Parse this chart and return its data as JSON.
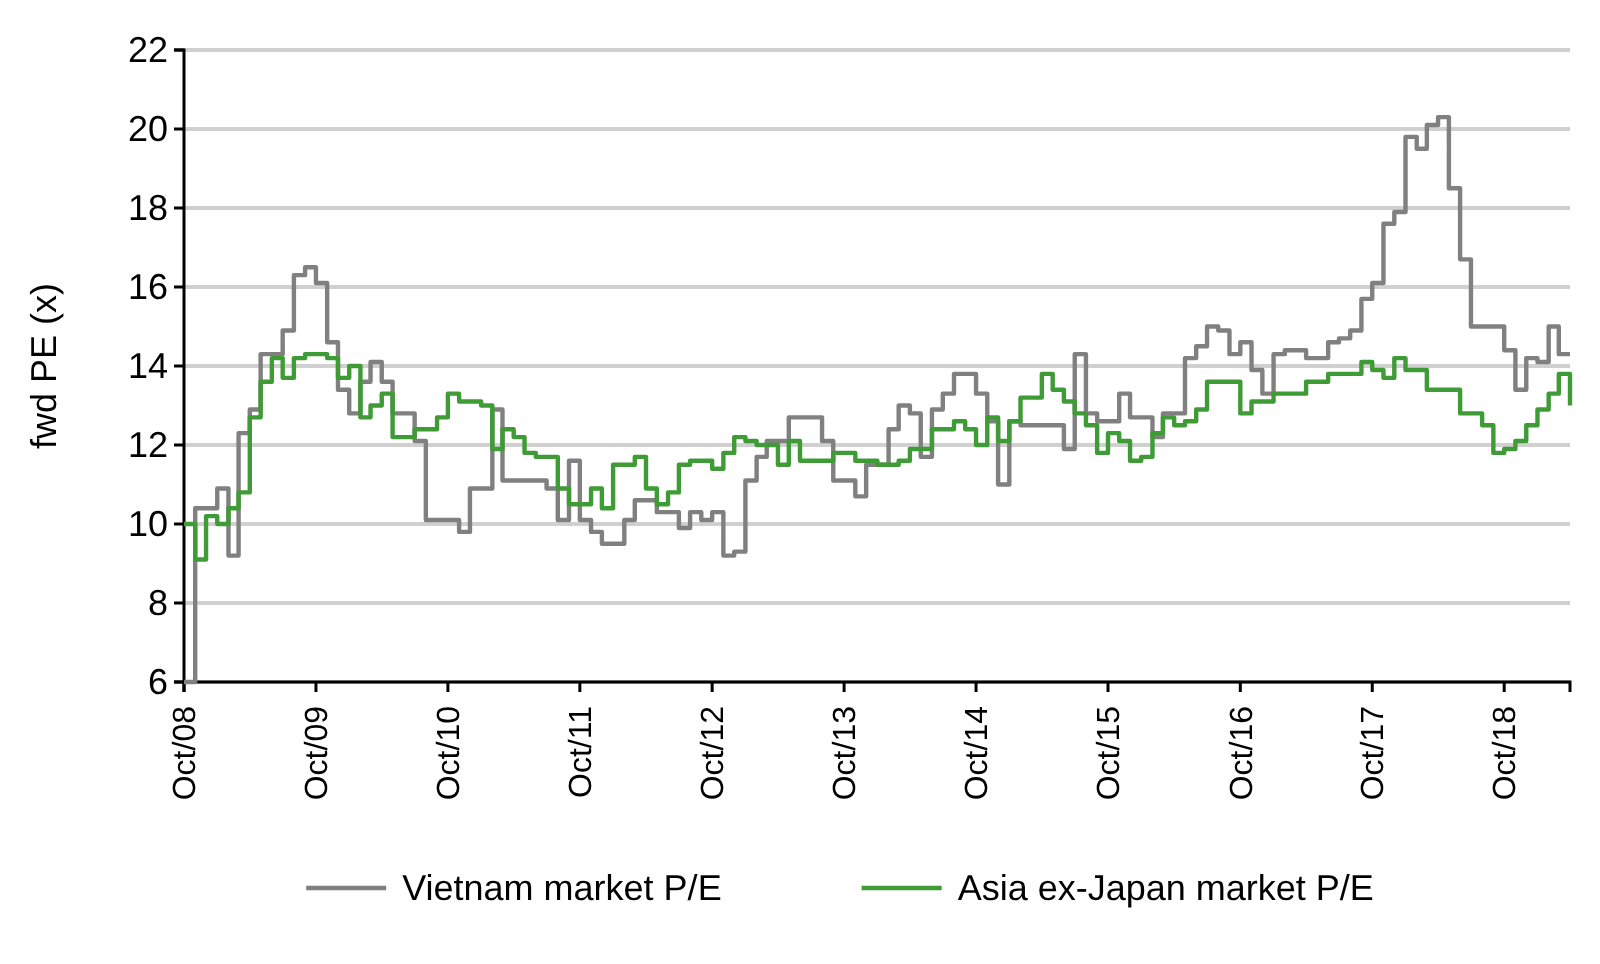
{
  "chart_data": {
    "type": "step",
    "ylabel": "fwd PE (x)",
    "xlim": [
      "2008-10",
      "2019-04"
    ],
    "xticks": [
      {
        "value": "2008-10",
        "label": "Oct/08"
      },
      {
        "value": "2009-10",
        "label": "Oct/09"
      },
      {
        "value": "2010-10",
        "label": "Oct/10"
      },
      {
        "value": "2011-10",
        "label": "Oct/11"
      },
      {
        "value": "2012-10",
        "label": "Oct/12"
      },
      {
        "value": "2013-10",
        "label": "Oct/13"
      },
      {
        "value": "2014-10",
        "label": "Oct/14"
      },
      {
        "value": "2015-10",
        "label": "Oct/15"
      },
      {
        "value": "2016-10",
        "label": "Oct/16"
      },
      {
        "value": "2017-10",
        "label": "Oct/17"
      },
      {
        "value": "2018-10",
        "label": "Oct/18"
      }
    ],
    "ylim": [
      6,
      22
    ],
    "yticks": [
      6,
      8,
      10,
      12,
      14,
      16,
      18,
      20,
      22
    ],
    "grid": "y",
    "legend": "bottom",
    "marker": "none",
    "line_style": "solid",
    "series": [
      {
        "name": "Vietnam market P/E",
        "color": "#808080",
        "x": [
          "2008-10",
          "2008-11",
          "2009-01",
          "2009-02",
          "2009-03",
          "2009-04",
          "2009-05",
          "2009-07",
          "2009-08",
          "2009-09",
          "2009-10",
          "2009-11",
          "2009-12",
          "2010-01",
          "2010-02",
          "2010-03",
          "2010-04",
          "2010-05",
          "2010-07",
          "2010-08",
          "2010-11",
          "2010-12",
          "2011-02",
          "2011-03",
          "2011-07",
          "2011-08",
          "2011-09",
          "2011-10",
          "2011-11",
          "2011-12",
          "2012-02",
          "2012-03",
          "2012-05",
          "2012-07",
          "2012-08",
          "2012-09",
          "2012-10",
          "2012-11",
          "2012-12",
          "2013-01",
          "2013-02",
          "2013-03",
          "2013-05",
          "2013-08",
          "2013-09",
          "2013-11",
          "2013-12",
          "2014-02",
          "2014-03",
          "2014-04",
          "2014-05",
          "2014-06",
          "2014-07",
          "2014-08",
          "2014-10",
          "2014-11",
          "2014-12",
          "2015-01",
          "2015-02",
          "2015-06",
          "2015-07",
          "2015-08",
          "2015-09",
          "2015-11",
          "2015-12",
          "2016-02",
          "2016-03",
          "2016-05",
          "2016-06",
          "2016-07",
          "2016-08",
          "2016-09",
          "2016-10",
          "2016-11",
          "2016-12",
          "2017-01",
          "2017-02",
          "2017-04",
          "2017-06",
          "2017-07",
          "2017-08",
          "2017-09",
          "2017-10",
          "2017-11",
          "2017-12",
          "2018-01",
          "2018-02",
          "2018-03",
          "2018-04",
          "2018-05",
          "2018-06",
          "2018-07",
          "2018-10",
          "2018-11",
          "2018-12",
          "2019-01",
          "2019-02",
          "2019-03",
          "2019-04"
        ],
        "values": [
          6.0,
          10.4,
          10.9,
          9.2,
          12.3,
          12.9,
          14.3,
          14.9,
          16.3,
          16.5,
          16.1,
          14.6,
          13.4,
          12.8,
          13.6,
          14.1,
          13.6,
          12.8,
          12.1,
          10.1,
          9.8,
          10.9,
          12.9,
          11.1,
          10.9,
          10.1,
          11.6,
          10.1,
          9.8,
          9.5,
          10.1,
          10.6,
          10.3,
          9.9,
          10.3,
          10.1,
          10.3,
          9.2,
          9.3,
          11.1,
          11.7,
          12.1,
          12.7,
          12.1,
          11.1,
          10.7,
          11.5,
          12.4,
          13.0,
          12.8,
          11.7,
          12.9,
          13.3,
          13.8,
          13.3,
          12.6,
          11.0,
          12.6,
          12.5,
          11.9,
          14.3,
          12.8,
          12.6,
          13.3,
          12.7,
          12.2,
          12.8,
          14.2,
          14.5,
          15.0,
          14.9,
          14.3,
          14.6,
          13.9,
          13.3,
          14.3,
          14.4,
          14.2,
          14.6,
          14.7,
          14.9,
          15.7,
          16.1,
          17.6,
          17.9,
          19.8,
          19.5,
          20.1,
          20.3,
          18.5,
          16.7,
          15.0,
          14.4,
          13.4,
          14.2,
          14.1,
          15.0,
          14.3,
          14.3
        ]
      },
      {
        "name": "Asia ex-Japan market P/E",
        "color": "#3f9b35",
        "x": [
          "2008-10",
          "2008-11",
          "2008-12",
          "2009-01",
          "2009-02",
          "2009-03",
          "2009-04",
          "2009-05",
          "2009-06",
          "2009-07",
          "2009-08",
          "2009-09",
          "2009-11",
          "2009-12",
          "2010-01",
          "2010-02",
          "2010-03",
          "2010-04",
          "2010-05",
          "2010-07",
          "2010-09",
          "2010-10",
          "2010-11",
          "2011-01",
          "2011-02",
          "2011-03",
          "2011-04",
          "2011-05",
          "2011-06",
          "2011-08",
          "2011-09",
          "2011-11",
          "2011-12",
          "2012-01",
          "2012-03",
          "2012-04",
          "2012-05",
          "2012-06",
          "2012-07",
          "2012-08",
          "2012-10",
          "2012-11",
          "2012-12",
          "2013-01",
          "2013-02",
          "2013-04",
          "2013-05",
          "2013-06",
          "2013-09",
          "2013-11",
          "2014-01",
          "2014-03",
          "2014-04",
          "2014-06",
          "2014-08",
          "2014-09",
          "2014-10",
          "2014-11",
          "2014-12",
          "2015-01",
          "2015-02",
          "2015-04",
          "2015-05",
          "2015-06",
          "2015-07",
          "2015-08",
          "2015-09",
          "2015-10",
          "2015-11",
          "2015-12",
          "2016-01",
          "2016-02",
          "2016-03",
          "2016-04",
          "2016-05",
          "2016-06",
          "2016-07",
          "2016-10",
          "2016-11",
          "2017-01",
          "2017-04",
          "2017-06",
          "2017-09",
          "2017-10",
          "2017-11",
          "2017-12",
          "2018-01",
          "2018-03",
          "2018-06",
          "2018-08",
          "2018-09",
          "2018-10",
          "2018-11",
          "2018-12",
          "2019-01",
          "2019-02",
          "2019-03",
          "2019-04"
        ],
        "values": [
          10.0,
          9.1,
          10.2,
          10.0,
          10.4,
          10.8,
          12.7,
          13.6,
          14.2,
          13.7,
          14.2,
          14.3,
          14.2,
          13.7,
          14.0,
          12.7,
          13.0,
          13.3,
          12.2,
          12.4,
          12.7,
          13.3,
          13.1,
          13.0,
          11.9,
          12.4,
          12.2,
          11.8,
          11.7,
          10.9,
          10.5,
          10.9,
          10.4,
          11.5,
          11.7,
          10.9,
          10.5,
          10.8,
          11.5,
          11.6,
          11.4,
          11.8,
          12.2,
          12.1,
          12.0,
          11.5,
          12.1,
          11.6,
          11.8,
          11.6,
          11.5,
          11.6,
          11.9,
          12.4,
          12.6,
          12.4,
          12.0,
          12.7,
          12.1,
          12.6,
          13.2,
          13.8,
          13.4,
          13.1,
          12.8,
          12.5,
          11.8,
          12.3,
          12.1,
          11.6,
          11.7,
          12.3,
          12.7,
          12.5,
          12.6,
          12.9,
          13.6,
          12.8,
          13.1,
          13.3,
          13.6,
          13.8,
          14.1,
          13.9,
          13.7,
          14.2,
          13.9,
          13.4,
          12.8,
          12.5,
          11.8,
          11.9,
          12.1,
          12.5,
          12.9,
          13.3,
          13.8,
          13.0
        ]
      }
    ]
  }
}
